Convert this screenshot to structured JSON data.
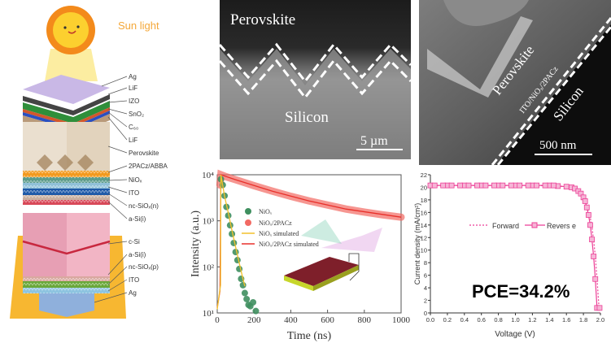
{
  "diagram": {
    "sun_label": "Sun light",
    "layers": [
      "Ag",
      "LiF",
      "IZO",
      "SnO₂",
      "C₆₀",
      "LiF",
      "Perovskite",
      "2PACz/ABBA",
      "NiOₓ",
      "ITO",
      "nc-SiOₓ(n)",
      "a-Si(i)",
      "c-Si",
      "a-Si(i)",
      "nc-SiOₓ(p)",
      "ITO",
      "Ag"
    ],
    "colors": {
      "sun": "#f7b21b",
      "beam": "#fbe98a",
      "backdrop": "#f7b731",
      "perovskite": "#eadfcf",
      "silicon": "#f2b5c5",
      "ag_bottom": "#8fb0dc"
    }
  },
  "sem_top": {
    "label_top": "Perovskite",
    "label_bottom": "Silicon",
    "scale": "5 µm"
  },
  "sem_side": {
    "label_perovskite": "Perovskite",
    "label_interface": "ITO/NiOₓ/2PACz",
    "label_silicon": "Silicon",
    "scale": "500 nm"
  },
  "chart_data": [
    {
      "type": "scatter",
      "title": "",
      "xlabel": "Time (ns)",
      "ylabel": "Intensity (a.u.)",
      "xlim": [
        0,
        1000
      ],
      "ylim": [
        10,
        10000
      ],
      "yscale": "log",
      "xticks": [
        "0",
        "200",
        "400",
        "600",
        "800",
        "1000"
      ],
      "yticks": [
        "10¹",
        "10²",
        "10³",
        "10⁴"
      ],
      "legend": [
        "NiOₓ",
        "NiOₓ/2PACz",
        "NiOₓ simulated",
        "NiOₓ/2PACz simulated"
      ],
      "legend_placement": "center-left",
      "series": [
        {
          "name": "NiOₓ",
          "color": "#3f8f5f",
          "x": [
            20,
            30,
            40,
            50,
            60,
            70,
            80,
            90,
            100,
            110,
            120,
            130,
            140,
            150,
            160,
            170,
            180,
            195,
            210
          ],
          "y": [
            8000,
            6000,
            3500,
            2000,
            1300,
            800,
            520,
            330,
            210,
            140,
            90,
            55,
            40,
            27,
            20,
            15,
            14,
            17,
            11
          ]
        },
        {
          "name": "NiOₓ/2PACz",
          "color": "#f26a63",
          "x": [
            15,
            20,
            50,
            100,
            200,
            300,
            400,
            500,
            600,
            700,
            800,
            900,
            1000
          ],
          "y": [
            6000,
            10000,
            9000,
            7800,
            5800,
            4400,
            3400,
            2700,
            2200,
            1800,
            1550,
            1350,
            1200
          ]
        },
        {
          "name": "NiOₓ simulated",
          "color": "#f3c12b",
          "x": [
            0,
            18,
            20,
            40,
            60,
            80,
            100,
            120,
            140,
            150
          ],
          "y": [
            12,
            40,
            10000,
            3400,
            1500,
            620,
            270,
            120,
            55,
            38
          ]
        },
        {
          "name": "NiOₓ/2PACz simulated",
          "color": "#e8302a",
          "x": [
            0,
            15,
            20,
            100,
            300,
            500,
            700,
            1000
          ],
          "y": [
            13,
            30,
            10000,
            7800,
            4400,
            2700,
            1800,
            1200
          ]
        }
      ]
    },
    {
      "type": "line",
      "xlabel": "Voltage (V)",
      "ylabel": "Current density (mA/cm²)",
      "xlim": [
        0,
        2.0
      ],
      "ylim": [
        0,
        22
      ],
      "xticks": [
        "0.0",
        "0.2",
        "0.4",
        "0.6",
        "0.8",
        "1.0",
        "1.2",
        "1.4",
        "1.6",
        "1.8",
        "2.0"
      ],
      "yticks": [
        "0",
        "2",
        "4",
        "6",
        "8",
        "10",
        "12",
        "14",
        "16",
        "18",
        "20",
        "22"
      ],
      "legend": [
        "Forward",
        "Revers e"
      ],
      "legend_placement": "center",
      "annotation": "PCE=34.2%",
      "color": "#ec3f96",
      "series": [
        {
          "name": "Forward",
          "style": "dotted",
          "x": [
            0,
            0.4,
            0.8,
            1.2,
            1.5,
            1.6,
            1.7,
            1.75,
            1.8,
            1.85,
            1.88,
            1.9,
            1.92,
            1.94,
            1.96,
            1.98,
            1.99
          ],
          "y": [
            20.3,
            20.3,
            20.3,
            20.3,
            20.2,
            20.1,
            19.7,
            19.2,
            18.3,
            16.6,
            15.2,
            13.8,
            11.6,
            9.0,
            5.4,
            1.5,
            0
          ]
        },
        {
          "name": "Revers e",
          "style": "line-square",
          "x": [
            0,
            0.2,
            0.4,
            0.6,
            0.8,
            1.0,
            1.2,
            1.4,
            1.5,
            1.6,
            1.66,
            1.7,
            1.74,
            1.77,
            1.8,
            1.82,
            1.84,
            1.86,
            1.88,
            1.9,
            1.92,
            1.94,
            1.96,
            1.99
          ],
          "y": [
            20.3,
            20.3,
            20.3,
            20.3,
            20.3,
            20.3,
            20.3,
            20.3,
            20.2,
            20.1,
            20.0,
            19.8,
            19.4,
            19.0,
            18.4,
            17.8,
            16.8,
            15.6,
            14.0,
            11.7,
            9.0,
            5.4,
            0.8,
            0.8
          ]
        }
      ]
    }
  ]
}
